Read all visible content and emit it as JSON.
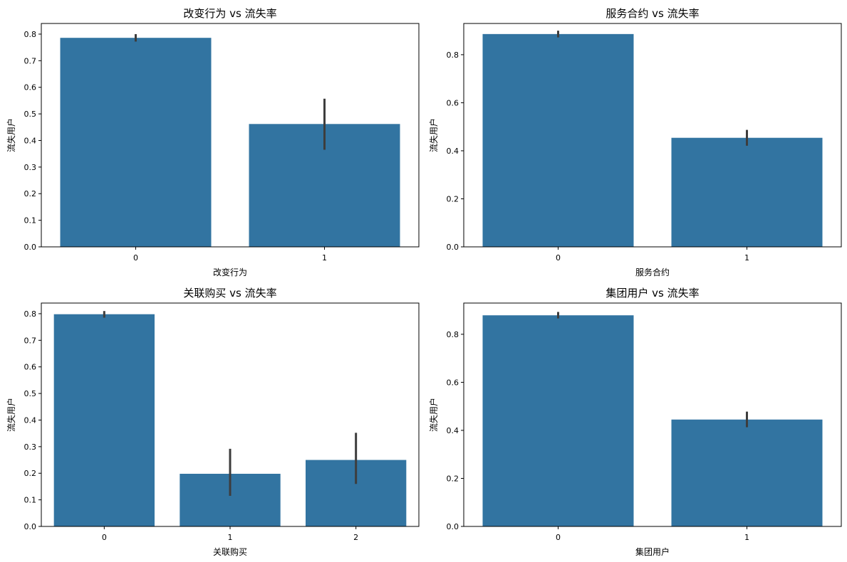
{
  "chart_data": [
    {
      "type": "bar",
      "title": "改变行为 vs 流失率",
      "xlabel": "改变行为",
      "ylabel": "流失用户",
      "categories": [
        "0",
        "1"
      ],
      "values": [
        0.786,
        0.462
      ],
      "error_low": [
        0.772,
        0.365
      ],
      "error_high": [
        0.8,
        0.557
      ],
      "ylim": [
        0,
        0.84
      ],
      "yticks": [
        "0.0",
        "0.1",
        "0.2",
        "0.3",
        "0.4",
        "0.5",
        "0.6",
        "0.7",
        "0.8"
      ],
      "color": "#3274a1"
    },
    {
      "type": "bar",
      "title": "服务合约 vs 流失率",
      "xlabel": "服务合约",
      "ylabel": "流失用户",
      "categories": [
        "0",
        "1"
      ],
      "values": [
        0.886,
        0.454
      ],
      "error_low": [
        0.872,
        0.421
      ],
      "error_high": [
        0.9,
        0.487
      ],
      "ylim": [
        0,
        0.93
      ],
      "yticks": [
        "0.0",
        "0.2",
        "0.4",
        "0.6",
        "0.8"
      ],
      "color": "#3274a1"
    },
    {
      "type": "bar",
      "title": "关联购买 vs 流失率",
      "xlabel": "关联购买",
      "ylabel": "流失用户",
      "categories": [
        "0",
        "1",
        "2"
      ],
      "values": [
        0.798,
        0.198,
        0.25
      ],
      "error_low": [
        0.785,
        0.115,
        0.16
      ],
      "error_high": [
        0.81,
        0.292,
        0.352
      ],
      "ylim": [
        0,
        0.84
      ],
      "yticks": [
        "0.0",
        "0.1",
        "0.2",
        "0.3",
        "0.4",
        "0.5",
        "0.6",
        "0.7",
        "0.8"
      ],
      "color": "#3274a1"
    },
    {
      "type": "bar",
      "title": "集团用户 vs 流失率",
      "xlabel": "集团用户",
      "ylabel": "流失用户",
      "categories": [
        "0",
        "1"
      ],
      "values": [
        0.879,
        0.445
      ],
      "error_low": [
        0.866,
        0.413
      ],
      "error_high": [
        0.893,
        0.478
      ],
      "ylim": [
        0,
        0.93
      ],
      "yticks": [
        "0.0",
        "0.2",
        "0.4",
        "0.6",
        "0.8"
      ],
      "color": "#3274a1"
    }
  ]
}
